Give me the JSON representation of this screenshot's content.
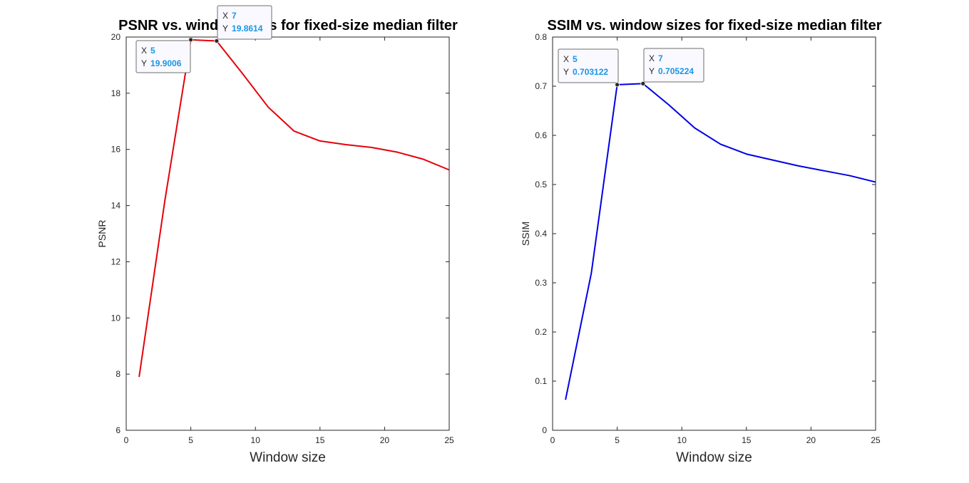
{
  "chart_data": [
    {
      "type": "line",
      "title": "PSNR vs. window sizes for fixed-size median filter",
      "xlabel": "Window size",
      "ylabel": "PSNR",
      "xlim": [
        0,
        25
      ],
      "ylim": [
        6,
        20
      ],
      "xticks": [
        0,
        5,
        10,
        15,
        20,
        25
      ],
      "yticks": [
        6,
        8,
        10,
        12,
        14,
        16,
        18,
        20
      ],
      "grid": true,
      "series": [
        {
          "color": "#e6000b",
          "x": [
            1,
            3,
            5,
            7,
            9,
            11,
            13,
            15,
            17,
            19,
            21,
            23,
            25
          ],
          "y": [
            7.9,
            14.2,
            19.9006,
            19.8614,
            18.7,
            17.5,
            16.65,
            16.3,
            16.17,
            16.07,
            15.9,
            15.65,
            15.27
          ]
        }
      ],
      "datatips": [
        {
          "x_label": "X",
          "x_value": "5",
          "y_label": "Y",
          "y_value": "19.9006",
          "x": 5,
          "y": 19.9006
        },
        {
          "x_label": "X",
          "x_value": "7",
          "y_label": "Y",
          "y_value": "19.8614",
          "x": 7,
          "y": 19.8614
        }
      ]
    },
    {
      "type": "line",
      "title": "SSIM vs. window sizes for fixed-size median filter",
      "xlabel": "Window size",
      "ylabel": "SSIM",
      "xlim": [
        0,
        25
      ],
      "ylim": [
        0,
        0.8
      ],
      "xticks": [
        0,
        5,
        10,
        15,
        20,
        25
      ],
      "yticks": [
        0,
        0.1,
        0.2,
        0.3,
        0.4,
        0.5,
        0.6,
        0.7,
        0.8
      ],
      "grid": true,
      "series": [
        {
          "color": "#0000e6",
          "x": [
            1,
            3,
            5,
            7,
            9,
            11,
            13,
            15,
            17,
            19,
            21,
            23,
            25
          ],
          "y": [
            0.062,
            0.32,
            0.703122,
            0.705224,
            0.662,
            0.615,
            0.582,
            0.562,
            0.55,
            0.538,
            0.528,
            0.518,
            0.505
          ]
        }
      ],
      "datatips": [
        {
          "x_label": "X",
          "x_value": "5",
          "y_label": "Y",
          "y_value": "0.703122",
          "x": 5,
          "y": 0.703122
        },
        {
          "x_label": "X",
          "x_value": "7",
          "y_label": "Y",
          "y_value": "0.705224",
          "x": 7,
          "y": 0.705224
        }
      ]
    }
  ]
}
